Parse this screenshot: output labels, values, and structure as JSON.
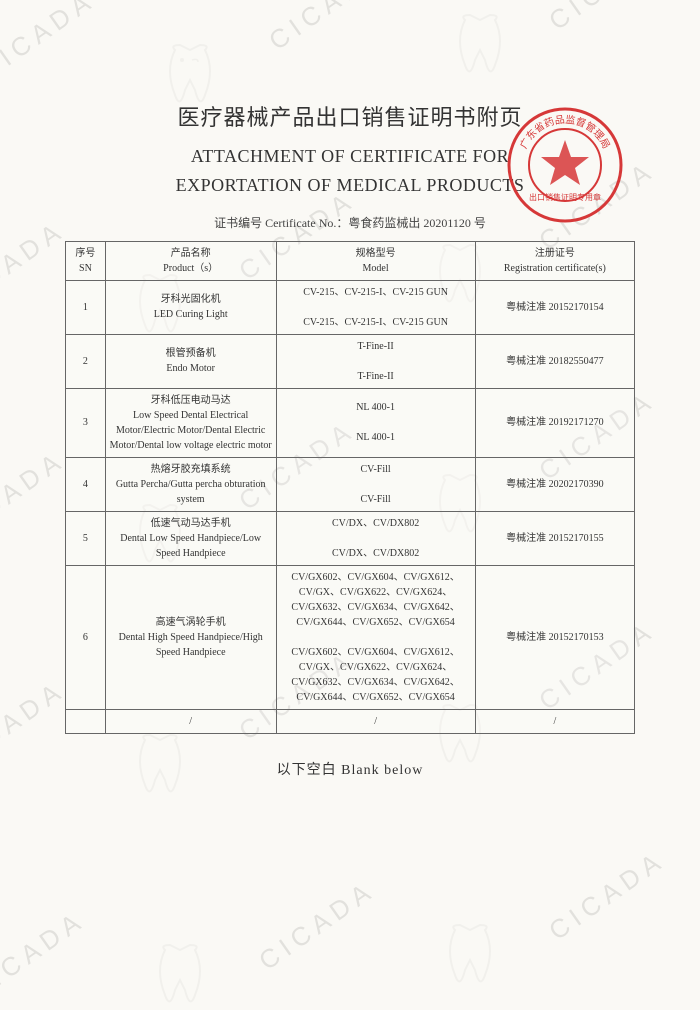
{
  "title_cn": "医疗器械产品出口销售证明书附页",
  "title_en_1": "ATTACHMENT OF CERTIFICATE FOR",
  "title_en_2": "EXPORTATION OF MEDICAL PRODUCTS",
  "cert_label": "证书编号 Certificate No.：粤食药监械出 20201120 号",
  "headers": {
    "sn_cn": "序号",
    "sn_en": "SN",
    "prod_cn": "产品名称",
    "prod_en": "Product（s）",
    "model_cn": "规格型号",
    "model_en": "Model",
    "reg_cn": "注册证号",
    "reg_en": "Registration certificate(s)"
  },
  "rows": [
    {
      "sn": "1",
      "prod_cn": "牙科光固化机",
      "prod_en": "LED Curing Light",
      "model_1": "CV-215、CV-215-I、CV-215 GUN",
      "model_2": "CV-215、CV-215-I、CV-215 GUN",
      "reg": "粤械注准 20152170154"
    },
    {
      "sn": "2",
      "prod_cn": "根管预备机",
      "prod_en": "Endo Motor",
      "model_1": "T-Fine-II",
      "model_2": "T-Fine-II",
      "reg": "粤械注准 20182550477"
    },
    {
      "sn": "3",
      "prod_cn": "牙科低压电动马达",
      "prod_en": "Low Speed Dental Electrical Motor/Electric Motor/Dental Electric Motor/Dental low voltage electric motor",
      "model_1": "NL 400-1",
      "model_2": "NL 400-1",
      "reg": "粤械注准 20192171270"
    },
    {
      "sn": "4",
      "prod_cn": "热熔牙胶充填系统",
      "prod_en": "Gutta Percha/Gutta percha obturation system",
      "model_1": "CV-Fill",
      "model_2": "CV-Fill",
      "reg": "粤械注准 20202170390"
    },
    {
      "sn": "5",
      "prod_cn": "低速气动马达手机",
      "prod_en": "Dental Low Speed Handpiece/Low Speed Handpiece",
      "model_1": "CV/DX、CV/DX802",
      "model_2": "CV/DX、CV/DX802",
      "reg": "粤械注准 20152170155"
    },
    {
      "sn": "6",
      "prod_cn": "高速气涡轮手机",
      "prod_en": "Dental High Speed Handpiece/High Speed Handpiece",
      "model_1": "CV/GX602、CV/GX604、CV/GX612、CV/GX、CV/GX622、CV/GX624、CV/GX632、CV/GX634、CV/GX642、CV/GX644、CV/GX652、CV/GX654",
      "model_2": "CV/GX602、CV/GX604、CV/GX612、CV/GX、CV/GX622、CV/GX624、CV/GX632、CV/GX634、CV/GX642、CV/GX644、CV/GX652、CV/GX654",
      "reg": "粤械注准 20152170153"
    },
    {
      "sn": "",
      "prod_cn": "/",
      "prod_en": "",
      "model_1": "/",
      "model_2": "",
      "reg": "/"
    }
  ],
  "blank_text": "以下空白 Blank below",
  "watermark_text": "CICADA",
  "stamp": {
    "outer_color": "#d63838",
    "inner_text_top": "出口销售证明专用章",
    "ring_text": "广东省药品监督管理局"
  },
  "colors": {
    "bg": "#faf9f5",
    "text": "#333333",
    "border": "#666666",
    "watermark": "#d8d8d4",
    "stamp": "#d63838"
  }
}
